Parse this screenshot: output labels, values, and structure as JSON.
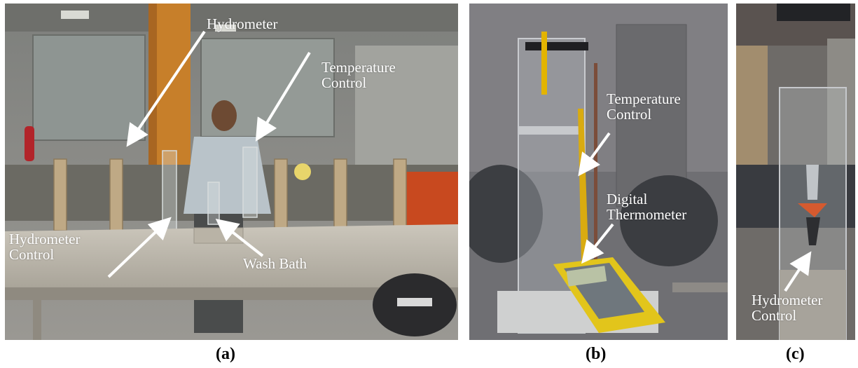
{
  "panels": [
    {
      "caption": "(a)",
      "labels": {
        "hydrometer": "Hydrometer",
        "temperature_control": "Temperature\nControl",
        "hydrometer_control": "Hydrometer\nControl",
        "wash_bath": "Wash Bath"
      }
    },
    {
      "caption": "(b)",
      "labels": {
        "temperature_control": "Temperature\nControl",
        "digital_thermometer": "Digital\nThermometer"
      }
    },
    {
      "caption": "(c)",
      "labels": {
        "hydrometer_control": "Hydrometer\nControl"
      }
    }
  ],
  "colors": {
    "label_text": "#ffffff",
    "arrow": "#ffffff",
    "caption_text": "#000000"
  }
}
